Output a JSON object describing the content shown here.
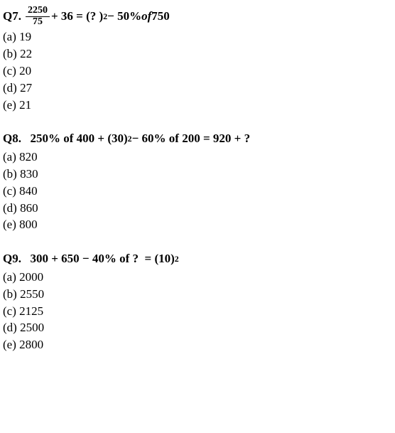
{
  "questions": [
    {
      "number": "Q7.",
      "frac_num": "2250",
      "frac_den": "75",
      "post_frac": " + 36 = (? )",
      "sup": "2",
      "tail1": " − 50% ",
      "of_word": "of",
      "tail2": " 750",
      "options": [
        {
          "label": "(a) ",
          "value": "19"
        },
        {
          "label": "(b) ",
          "value": "22"
        },
        {
          "label": "(c) ",
          "value": "20"
        },
        {
          "label": "(d) ",
          "value": "27"
        },
        {
          "label": "(e) ",
          "value": "21"
        }
      ]
    },
    {
      "number": "Q8.",
      "stem_pre": "  250% of 400 + (30)",
      "sup": "2",
      "stem_post": " − 60% of 200 = 920 + ?",
      "options": [
        {
          "label": "(a) ",
          "value": "820"
        },
        {
          "label": "(b) ",
          "value": "830"
        },
        {
          "label": "(c) ",
          "value": "840"
        },
        {
          "label": "(d) ",
          "value": "860"
        },
        {
          "label": "(e) ",
          "value": "800"
        }
      ]
    },
    {
      "number": "Q9.",
      "stem_pre": "  300 + 650 − 40% of ?  = (10)",
      "sup": "2",
      "stem_post": "",
      "options": [
        {
          "label": "(a) ",
          "value": "2000"
        },
        {
          "label": "(b) ",
          "value": "2550"
        },
        {
          "label": "(c) ",
          "value": "2125"
        },
        {
          "label": "(d) ",
          "value": "2500"
        },
        {
          "label": "(e) ",
          "value": "2800"
        }
      ]
    }
  ]
}
